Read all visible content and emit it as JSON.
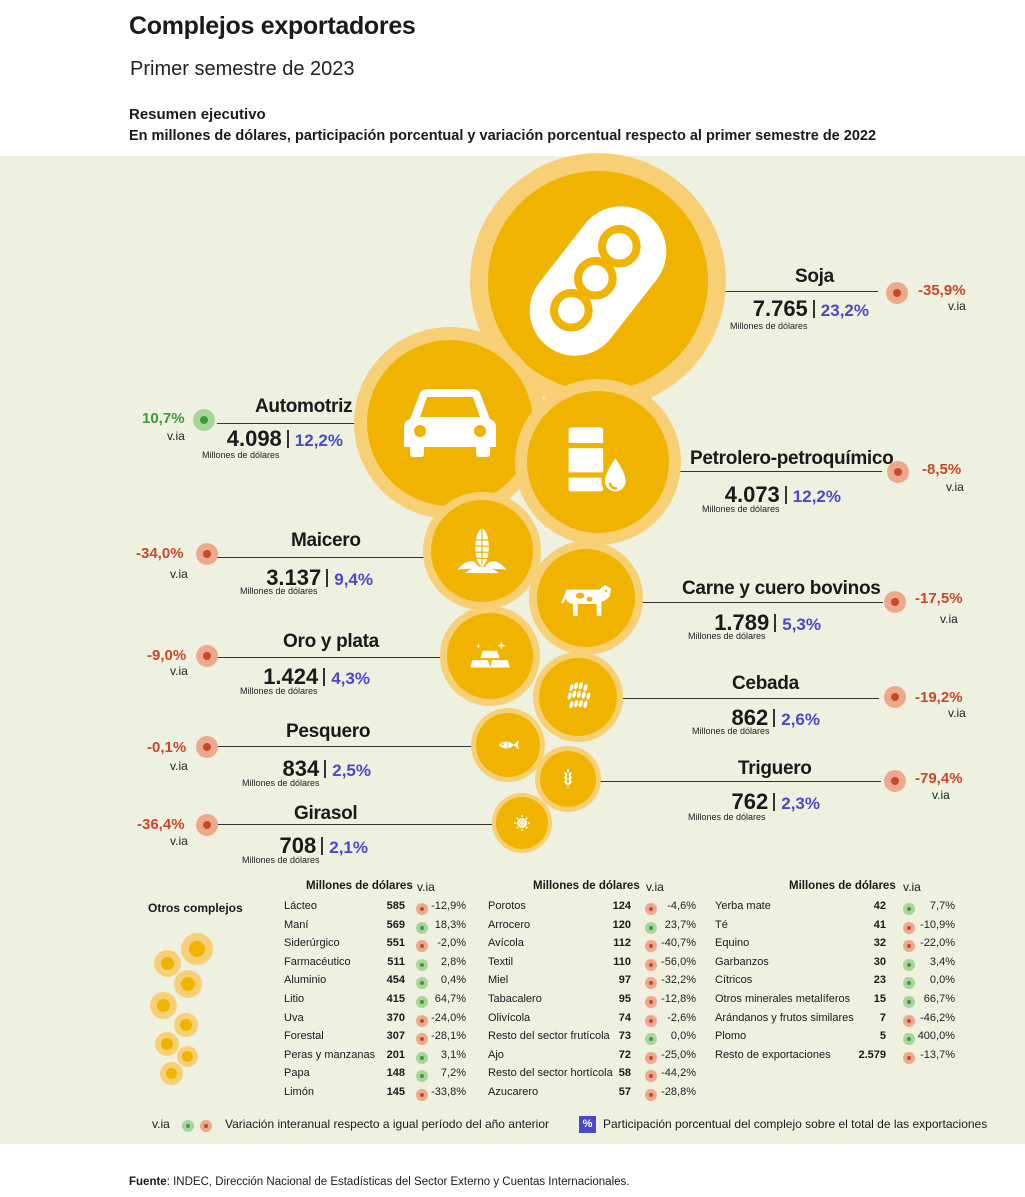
{
  "header": {
    "title": "Complejos exportadores",
    "subtitle": "Primer semestre de 2023",
    "section_title": "Resumen ejecutivo",
    "section_subtitle": "En millones de dólares, participación porcentual y variación porcentual respecto al primer semestre de 2022"
  },
  "unit_label": "Millones de dólares",
  "via_label": "v.ia",
  "colors": {
    "bubble_outer": "#f7cf75",
    "bubble_inner": "#f0b400",
    "negative": "#c8482a",
    "positive": "#3d9a3a",
    "share": "#4a4ac8",
    "panel": "#eef0e0"
  },
  "chart_data": {
    "type": "bubble",
    "title": "Resumen ejecutivo",
    "main_complexes": [
      {
        "name": "Soja",
        "value": "7.765",
        "share": "23,2%",
        "via": "-35,9%",
        "trend": "negative",
        "icon": "soybean-icon"
      },
      {
        "name": "Automotriz",
        "value": "4.098",
        "share": "12,2%",
        "via": "10,7%",
        "trend": "positive",
        "icon": "car-icon"
      },
      {
        "name": "Petrolero-petroquímico",
        "value": "4.073",
        "share": "12,2%",
        "via": "-8,5%",
        "trend": "negative",
        "icon": "oil-barrel-icon"
      },
      {
        "name": "Maicero",
        "value": "3.137",
        "share": "9,4%",
        "via": "-34,0%",
        "trend": "negative",
        "icon": "corn-icon"
      },
      {
        "name": "Carne y cuero bovinos",
        "value": "1.789",
        "share": "5,3%",
        "via": "-17,5%",
        "trend": "negative",
        "icon": "cow-icon"
      },
      {
        "name": "Oro y plata",
        "value": "1.424",
        "share": "4,3%",
        "via": "-9,0%",
        "trend": "negative",
        "icon": "gold-bars-icon"
      },
      {
        "name": "Cebada",
        "value": "862",
        "share": "2,6%",
        "via": "-19,2%",
        "trend": "negative",
        "icon": "barley-icon"
      },
      {
        "name": "Pesquero",
        "value": "834",
        "share": "2,5%",
        "via": "-0,1%",
        "trend": "negative",
        "icon": "fish-icon"
      },
      {
        "name": "Triguero",
        "value": "762",
        "share": "2,3%",
        "via": "-79,4%",
        "trend": "negative",
        "icon": "wheat-icon"
      },
      {
        "name": "Girasol",
        "value": "708",
        "share": "2,1%",
        "via": "-36,4%",
        "trend": "negative",
        "icon": "sunflower-icon"
      }
    ],
    "others": {
      "title": "Otros complejos",
      "header_value": "Millones de dólares",
      "header_via": "v.ia",
      "columns": [
        [
          {
            "name": "Lácteo",
            "value": "585",
            "via": "-12,9%",
            "trend": "negative"
          },
          {
            "name": "Maní",
            "value": "569",
            "via": "18,3%",
            "trend": "positive"
          },
          {
            "name": "Siderúrgico",
            "value": "551",
            "via": "-2,0%",
            "trend": "negative"
          },
          {
            "name": "Farmacéutico",
            "value": "511",
            "via": "2,8%",
            "trend": "positive"
          },
          {
            "name": "Aluminio",
            "value": "454",
            "via": "0,4%",
            "trend": "positive"
          },
          {
            "name": "Litio",
            "value": "415",
            "via": "64,7%",
            "trend": "positive"
          },
          {
            "name": "Uva",
            "value": "370",
            "via": "-24,0%",
            "trend": "negative"
          },
          {
            "name": "Forestal",
            "value": "307",
            "via": "-28,1%",
            "trend": "negative"
          },
          {
            "name": "Peras y manzanas",
            "value": "201",
            "via": "3,1%",
            "trend": "positive"
          },
          {
            "name": "Papa",
            "value": "148",
            "via": "7,2%",
            "trend": "positive"
          },
          {
            "name": "Limón",
            "value": "145",
            "via": "-33,8%",
            "trend": "negative"
          }
        ],
        [
          {
            "name": "Porotos",
            "value": "124",
            "via": "-4,6%",
            "trend": "negative"
          },
          {
            "name": "Arrocero",
            "value": "120",
            "via": "23,7%",
            "trend": "positive"
          },
          {
            "name": "Avícola",
            "value": "112",
            "via": "-40,7%",
            "trend": "negative"
          },
          {
            "name": "Textil",
            "value": "110",
            "via": "-56,0%",
            "trend": "negative"
          },
          {
            "name": "Miel",
            "value": "97",
            "via": "-32,2%",
            "trend": "negative"
          },
          {
            "name": "Tabacalero",
            "value": "95",
            "via": "-12,8%",
            "trend": "negative"
          },
          {
            "name": "Olivícola",
            "value": "74",
            "via": "-2,6%",
            "trend": "negative"
          },
          {
            "name": "Resto del sector frutícola",
            "value": "73",
            "via": "0,0%",
            "trend": "positive"
          },
          {
            "name": "Ajo",
            "value": "72",
            "via": "-25,0%",
            "trend": "negative"
          },
          {
            "name": "Resto del sector hortícola",
            "value": "58",
            "via": "-44,2%",
            "trend": "negative"
          },
          {
            "name": "Azucarero",
            "value": "57",
            "via": "-28,8%",
            "trend": "negative"
          }
        ],
        [
          {
            "name": "Yerba mate",
            "value": "42",
            "via": "7,7%",
            "trend": "positive"
          },
          {
            "name": "Té",
            "value": "41",
            "via": "-10,9%",
            "trend": "negative"
          },
          {
            "name": "Equino",
            "value": "32",
            "via": "-22,0%",
            "trend": "negative"
          },
          {
            "name": "Garbanzos",
            "value": "30",
            "via": "3,4%",
            "trend": "positive"
          },
          {
            "name": "Cítricos",
            "value": "23",
            "via": "0,0%",
            "trend": "positive"
          },
          {
            "name": "Otros minerales metalíferos",
            "value": "15",
            "via": "66,7%",
            "trend": "positive"
          },
          {
            "name": "Arándanos y frutos similares",
            "value": "7",
            "via": "-46,2%",
            "trend": "negative"
          },
          {
            "name": "Plomo",
            "value": "5",
            "via": "400,0%",
            "trend": "positive"
          },
          {
            "name": "Resto de exportaciones",
            "value": "2.579",
            "via": "-13,7%",
            "trend": "negative"
          }
        ]
      ]
    }
  },
  "legend": {
    "via_label": "v.ia",
    "via_text": "Variación interanual respecto a igual período del año anterior",
    "pct_symbol": "%",
    "pct_text": "Participación porcentual del complejo sobre el total de las exportaciones"
  },
  "source": {
    "label": "Fuente",
    "text": ": INDEC, Dirección Nacional de Estadísticas del Sector Externo y Cuentas Internacionales."
  }
}
